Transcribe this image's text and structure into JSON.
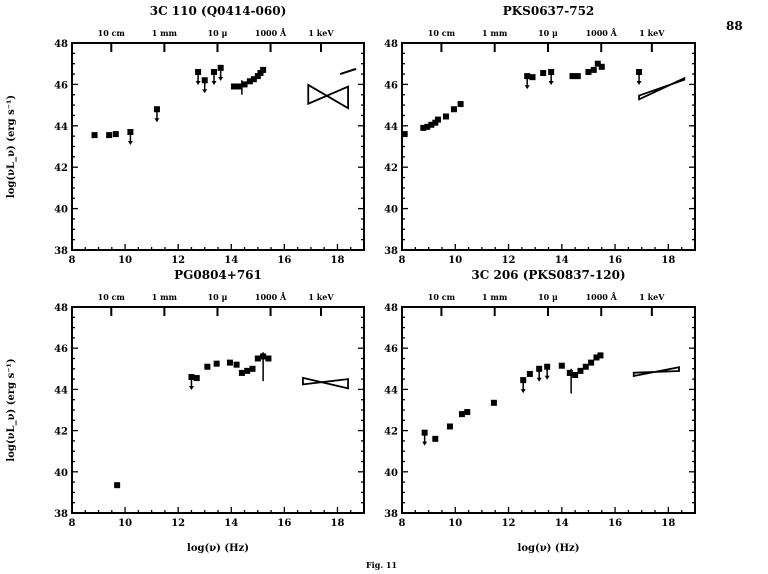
{
  "page_number": "88",
  "figure_caption": "Fig. 11",
  "chart_data": [
    {
      "type": "scatter",
      "title": "3C 110 (Q0414-060)",
      "xlabel": "",
      "ylabel": "log(νL_ν) (erg s⁻¹)",
      "xlim": [
        8,
        19
      ],
      "ylim": [
        38,
        48
      ],
      "xticks": [
        8,
        10,
        12,
        14,
        16,
        18
      ],
      "yticks": [
        38,
        40,
        42,
        44,
        46,
        48
      ],
      "top_axis": [
        {
          "label": "10 cm",
          "x": 9.48
        },
        {
          "label": "1 mm",
          "x": 11.48
        },
        {
          "label": "10 μ",
          "x": 13.48
        },
        {
          "label": "1000 Å",
          "x": 15.48
        },
        {
          "label": "1 keV",
          "x": 17.38
        }
      ],
      "points": [
        [
          8.85,
          43.55
        ],
        [
          9.4,
          43.55
        ],
        [
          9.65,
          43.6
        ],
        [
          14.1,
          45.9
        ],
        [
          14.3,
          45.9
        ],
        [
          14.5,
          46.0
        ],
        [
          14.7,
          46.15
        ],
        [
          14.85,
          46.25
        ],
        [
          15.0,
          46.4
        ],
        [
          15.1,
          46.55
        ],
        [
          15.2,
          46.7
        ]
      ],
      "upper_limits": [
        [
          10.2,
          43.7
        ],
        [
          11.2,
          44.8
        ],
        [
          12.75,
          46.6
        ],
        [
          13.0,
          46.2
        ],
        [
          13.35,
          46.6
        ],
        [
          13.6,
          46.8
        ]
      ],
      "error_bars": [
        [
          14.4,
          45.5,
          46.2
        ]
      ],
      "bowties": [
        {
          "x": [
            16.9,
            18.4
          ],
          "center": [
            17.6,
            45.45
          ],
          "slopes": [
            -0.75,
            0.55
          ]
        }
      ],
      "lines": [
        [
          [
            18.1,
            46.5
          ],
          [
            18.7,
            46.75
          ]
        ]
      ]
    },
    {
      "type": "scatter",
      "title": "PKS0637-752",
      "xlabel": "",
      "ylabel": "",
      "xlim": [
        8,
        19
      ],
      "ylim": [
        38,
        48
      ],
      "xticks": [
        8,
        10,
        12,
        14,
        16,
        18
      ],
      "yticks": [
        38,
        40,
        42,
        44,
        46,
        48
      ],
      "top_axis": [
        {
          "label": "10 cm",
          "x": 9.48
        },
        {
          "label": "1 mm",
          "x": 11.48
        },
        {
          "label": "10 μ",
          "x": 13.48
        },
        {
          "label": "1000 Å",
          "x": 15.48
        },
        {
          "label": "1 keV",
          "x": 17.38
        }
      ],
      "points": [
        [
          8.1,
          43.6
        ],
        [
          8.8,
          43.9
        ],
        [
          8.95,
          43.95
        ],
        [
          9.1,
          44.05
        ],
        [
          9.25,
          44.15
        ],
        [
          9.35,
          44.3
        ],
        [
          9.65,
          44.45
        ],
        [
          9.95,
          44.8
        ],
        [
          10.2,
          45.05
        ],
        [
          12.9,
          46.35
        ],
        [
          13.3,
          46.55
        ],
        [
          14.4,
          46.4
        ],
        [
          14.6,
          46.4
        ],
        [
          15.0,
          46.6
        ],
        [
          15.2,
          46.7
        ],
        [
          15.35,
          47.0
        ],
        [
          15.5,
          46.85
        ]
      ],
      "upper_limits": [
        [
          12.7,
          46.4
        ],
        [
          13.6,
          46.6
        ],
        [
          16.9,
          46.6
        ]
      ],
      "error_bars": [],
      "bowties": [
        {
          "x": [
            16.9,
            18.6
          ],
          "center": [
            18.1,
            46.0
          ],
          "slopes": [
            0.45,
            0.6
          ]
        }
      ],
      "lines": []
    },
    {
      "type": "scatter",
      "title": "PG0804+761",
      "xlabel": "log(ν) (Hz)",
      "ylabel": "log(νL_ν) (erg s⁻¹)",
      "xlim": [
        8,
        19
      ],
      "ylim": [
        38,
        48
      ],
      "xticks": [
        8,
        10,
        12,
        14,
        16,
        18
      ],
      "yticks": [
        38,
        40,
        42,
        44,
        46,
        48
      ],
      "top_axis": [
        {
          "label": "10 cm",
          "x": 9.48
        },
        {
          "label": "1 mm",
          "x": 11.48
        },
        {
          "label": "10 μ",
          "x": 13.48
        },
        {
          "label": "1000 Å",
          "x": 15.48
        },
        {
          "label": "1 keV",
          "x": 17.38
        }
      ],
      "points": [
        [
          9.7,
          39.35
        ],
        [
          12.7,
          44.55
        ],
        [
          13.1,
          45.1
        ],
        [
          13.45,
          45.25
        ],
        [
          13.95,
          45.3
        ],
        [
          14.2,
          45.2
        ],
        [
          14.4,
          44.8
        ],
        [
          14.6,
          44.9
        ],
        [
          14.8,
          45.0
        ],
        [
          15.0,
          45.5
        ],
        [
          15.2,
          45.6
        ],
        [
          15.4,
          45.5
        ]
      ],
      "upper_limits": [
        [
          12.5,
          44.6
        ]
      ],
      "error_bars": [
        [
          15.2,
          44.4,
          45.8
        ]
      ],
      "bowties": [
        {
          "x": [
            16.7,
            18.4
          ],
          "center": [
            17.4,
            44.35
          ],
          "slopes": [
            -0.3,
            0.15
          ]
        }
      ],
      "lines": []
    },
    {
      "type": "scatter",
      "title": "3C 206 (PKS0837-120)",
      "xlabel": "log(ν) (Hz)",
      "ylabel": "",
      "xlim": [
        8,
        19
      ],
      "ylim": [
        38,
        48
      ],
      "xticks": [
        8,
        10,
        12,
        14,
        16,
        18
      ],
      "yticks": [
        38,
        40,
        42,
        44,
        46,
        48
      ],
      "top_axis": [
        {
          "label": "10 cm",
          "x": 9.48
        },
        {
          "label": "1 mm",
          "x": 11.48
        },
        {
          "label": "10 μ",
          "x": 13.48
        },
        {
          "label": "1000 Å",
          "x": 15.48
        },
        {
          "label": "1 keV",
          "x": 17.38
        }
      ],
      "points": [
        [
          9.25,
          41.6
        ],
        [
          9.8,
          42.2
        ],
        [
          10.25,
          42.8
        ],
        [
          10.45,
          42.9
        ],
        [
          11.45,
          43.35
        ],
        [
          12.8,
          44.75
        ],
        [
          14.0,
          45.15
        ],
        [
          14.3,
          44.8
        ],
        [
          14.5,
          44.7
        ],
        [
          14.7,
          44.9
        ],
        [
          14.9,
          45.1
        ],
        [
          15.1,
          45.3
        ],
        [
          15.3,
          45.55
        ],
        [
          15.45,
          45.65
        ]
      ],
      "upper_limits": [
        [
          8.85,
          41.9
        ],
        [
          12.55,
          44.45
        ],
        [
          13.15,
          45.0
        ],
        [
          13.45,
          45.1
        ]
      ],
      "error_bars": [
        [
          14.35,
          43.8,
          45.0
        ]
      ],
      "bowties": [
        {
          "x": [
            16.7,
            18.4
          ],
          "center": [
            17.5,
            44.85
          ],
          "slopes": [
            0.25,
            0.05
          ]
        }
      ],
      "lines": []
    }
  ]
}
